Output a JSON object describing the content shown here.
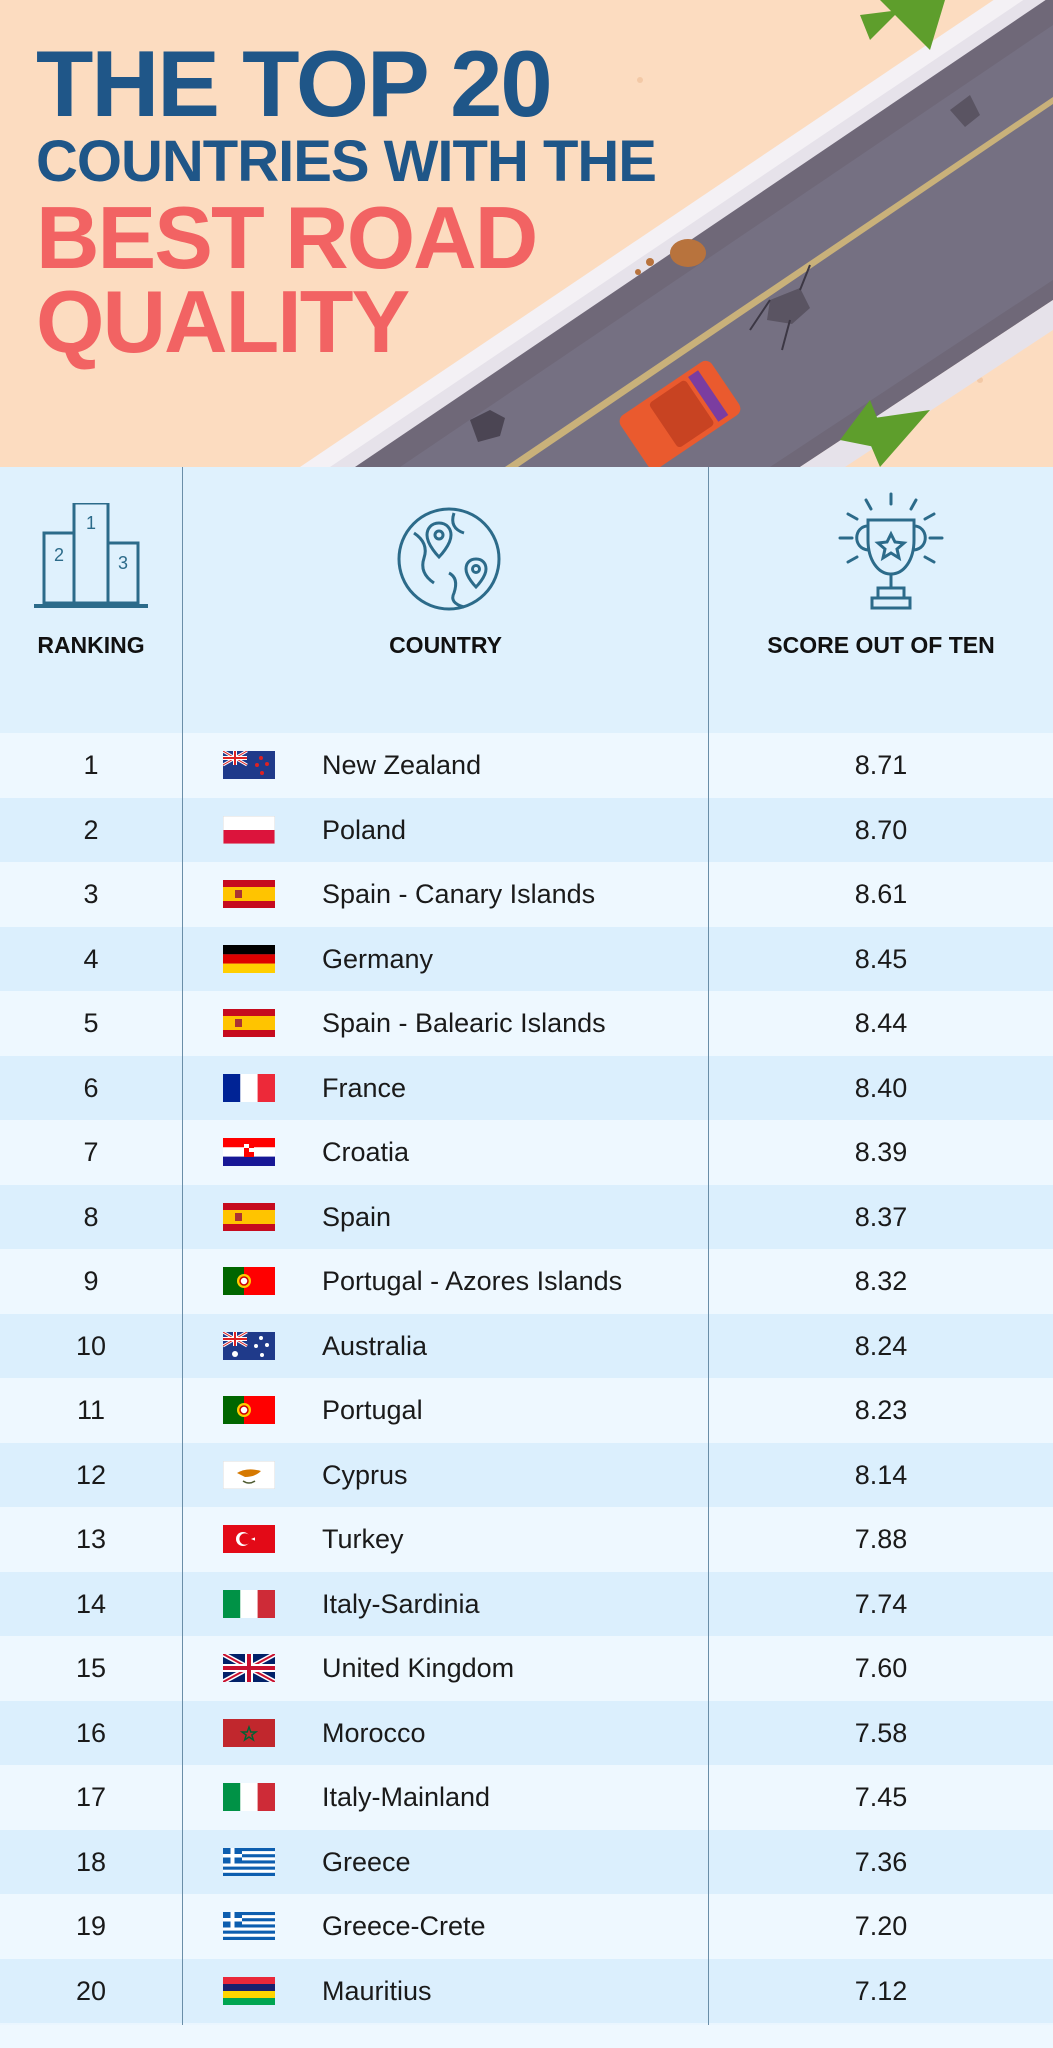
{
  "title": {
    "line1": "THE TOP 20",
    "line2": "COUNTRIES WITH THE",
    "line3": "BEST ROAD",
    "line4": "QUALITY"
  },
  "colors": {
    "title_blue": "#1f5688",
    "title_red": "#f26363",
    "banner_bg": "#fcdcc0",
    "row_light": "#eef8ff",
    "row_dark": "#dbeffd"
  },
  "headers": {
    "ranking": "RANKING",
    "country": "COUNTRY",
    "score": "SCORE OUT OF TEN",
    "ranking_icon": "podium-icon",
    "country_icon": "globe-icon",
    "score_icon": "trophy-icon"
  },
  "rows": [
    {
      "rank": "1",
      "flag": "new-zealand-flag",
      "country": "New Zealand",
      "score": "8.71"
    },
    {
      "rank": "2",
      "flag": "poland-flag",
      "country": "Poland",
      "score": "8.70"
    },
    {
      "rank": "3",
      "flag": "spain-flag",
      "country": "Spain - Canary Islands",
      "score": "8.61"
    },
    {
      "rank": "4",
      "flag": "germany-flag",
      "country": "Germany",
      "score": "8.45"
    },
    {
      "rank": "5",
      "flag": "spain-flag",
      "country": "Spain - Balearic Islands",
      "score": "8.44"
    },
    {
      "rank": "6",
      "flag": "france-flag",
      "country": "France",
      "score": "8.40"
    },
    {
      "rank": "7",
      "flag": "croatia-flag",
      "country": "Croatia",
      "score": "8.39"
    },
    {
      "rank": "8",
      "flag": "spain-flag",
      "country": "Spain",
      "score": "8.37"
    },
    {
      "rank": "9",
      "flag": "portugal-flag",
      "country": "Portugal - Azores Islands",
      "score": "8.32"
    },
    {
      "rank": "10",
      "flag": "australia-flag",
      "country": "Australia",
      "score": "8.24"
    },
    {
      "rank": "11",
      "flag": "portugal-flag",
      "country": "Portugal",
      "score": "8.23"
    },
    {
      "rank": "12",
      "flag": "cyprus-flag",
      "country": "Cyprus",
      "score": "8.14"
    },
    {
      "rank": "13",
      "flag": "turkey-flag",
      "country": "Turkey",
      "score": "7.88"
    },
    {
      "rank": "14",
      "flag": "italy-flag",
      "country": "Italy-Sardinia",
      "score": "7.74"
    },
    {
      "rank": "15",
      "flag": "uk-flag",
      "country": "United Kingdom",
      "score": "7.60"
    },
    {
      "rank": "16",
      "flag": "morocco-flag",
      "country": "Morocco",
      "score": "7.58"
    },
    {
      "rank": "17",
      "flag": "italy-flag",
      "country": "Italy-Mainland",
      "score": "7.45"
    },
    {
      "rank": "18",
      "flag": "greece-flag",
      "country": "Greece",
      "score": "7.36"
    },
    {
      "rank": "19",
      "flag": "greece-flag",
      "country": "Greece-Crete",
      "score": "7.20"
    },
    {
      "rank": "20",
      "flag": "mauritius-flag",
      "country": "Mauritius",
      "score": "7.12"
    }
  ]
}
